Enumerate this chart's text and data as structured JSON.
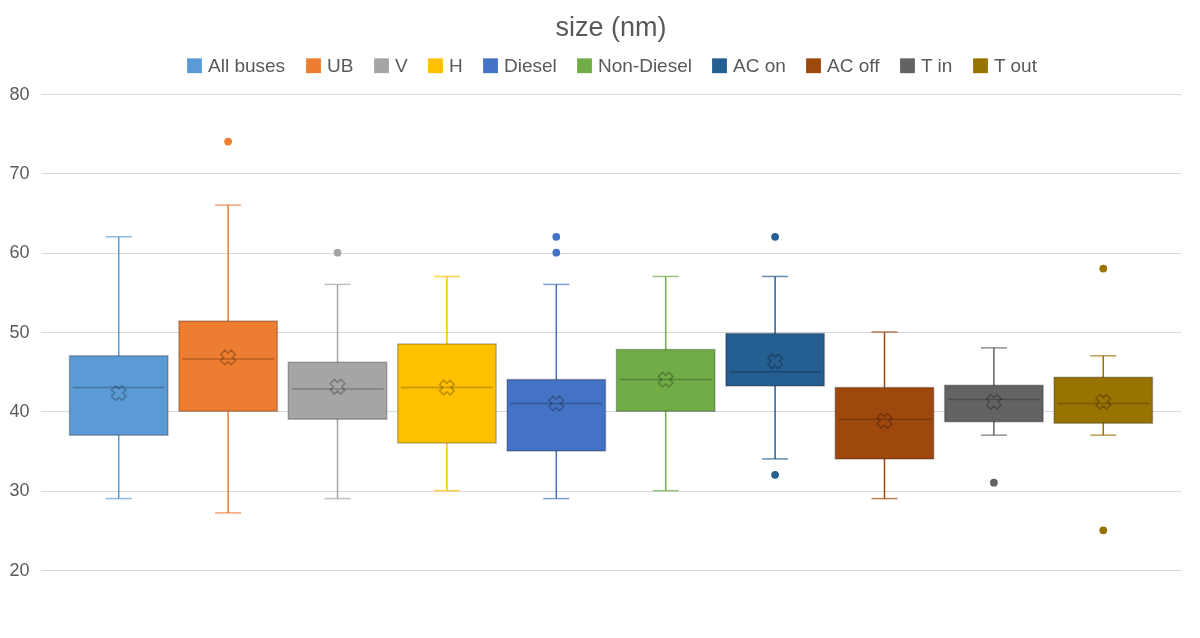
{
  "chart_data": {
    "type": "box",
    "title": "size (nm)",
    "categories": [
      null
    ],
    "ylim": [
      20,
      80
    ],
    "yticks": [
      20,
      30,
      40,
      50,
      60,
      70,
      80
    ],
    "grid": "y",
    "legend": "top",
    "tick_labels": "y",
    "series": [
      {
        "name": "All buses",
        "color": "#5b9bd5",
        "boxes": [
          {
            "low": 29,
            "q1": 37,
            "median": 43,
            "q3": 47,
            "high": 62,
            "mean": 42.3
          }
        ]
      },
      {
        "name": "UB",
        "color": "#ed7d31",
        "boxes": [
          {
            "low": 27.2,
            "q1": 40,
            "median": 46.6,
            "q3": 51.4,
            "high": 66,
            "mean": 46.8,
            "outliers": [
              74
            ]
          }
        ]
      },
      {
        "name": "V",
        "color": "#a5a5a5",
        "boxes": [
          {
            "low": 29,
            "q1": 39,
            "median": 42.8,
            "q3": 46.2,
            "high": 56,
            "mean": 43.1,
            "outliers": [
              60
            ]
          }
        ]
      },
      {
        "name": "H",
        "color": "#ffc000",
        "boxes": [
          {
            "low": 30,
            "q1": 36,
            "median": 43,
            "q3": 48.5,
            "high": 57,
            "mean": 43
          }
        ]
      },
      {
        "name": "Diesel",
        "color": "#4472c4",
        "boxes": [
          {
            "low": 29,
            "q1": 35,
            "median": 41,
            "q3": 44,
            "high": 56,
            "mean": 41,
            "outliers": [
              60,
              62
            ]
          }
        ]
      },
      {
        "name": "Non-Diesel",
        "color": "#70ad47",
        "boxes": [
          {
            "low": 30,
            "q1": 40,
            "median": 44,
            "q3": 47.8,
            "high": 57,
            "mean": 44
          }
        ]
      },
      {
        "name": "AC on",
        "color": "#255e91",
        "boxes": [
          {
            "low": 34,
            "q1": 43.2,
            "median": 45,
            "q3": 49.8,
            "high": 57,
            "mean": 46.3,
            "outliers": [
              32,
              62
            ]
          }
        ]
      },
      {
        "name": "AC off",
        "color": "#9e480e",
        "boxes": [
          {
            "low": 29,
            "q1": 34,
            "median": 39,
            "q3": 43,
            "high": 50,
            "mean": 38.8
          }
        ]
      },
      {
        "name": "T in",
        "color": "#636363",
        "boxes": [
          {
            "low": 37,
            "q1": 38.7,
            "median": 41.5,
            "q3": 43.3,
            "high": 48,
            "mean": 41.2,
            "outliers": [
              31
            ]
          }
        ]
      },
      {
        "name": "T out",
        "color": "#997300",
        "boxes": [
          {
            "low": 37,
            "q1": 38.5,
            "median": 41,
            "q3": 44.3,
            "high": 47,
            "mean": 41.2,
            "outliers": [
              25,
              58
            ]
          }
        ]
      }
    ]
  }
}
